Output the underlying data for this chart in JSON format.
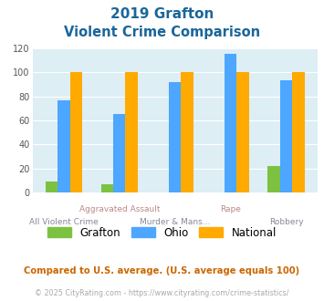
{
  "title_line1": "2019 Grafton",
  "title_line2": "Violent Crime Comparison",
  "categories": [
    "All Violent Crime",
    "Aggravated Assault",
    "Murder & Mans...",
    "Rape",
    "Robbery"
  ],
  "grafton": [
    9,
    7,
    0,
    0,
    22
  ],
  "ohio": [
    77,
    65,
    92,
    115,
    93
  ],
  "national": [
    100,
    100,
    100,
    100,
    100
  ],
  "grafton_color": "#7dc142",
  "ohio_color": "#4da6ff",
  "national_color": "#ffaa00",
  "bg_color": "#ddeef5",
  "ylim": [
    0,
    120
  ],
  "yticks": [
    0,
    20,
    40,
    60,
    80,
    100,
    120
  ],
  "title_color": "#1a6699",
  "xlabel_color_top": "#bb8888",
  "xlabel_color_bot": "#888899",
  "footnote1": "Compared to U.S. average. (U.S. average equals 100)",
  "footnote2": "© 2025 CityRating.com - https://www.cityrating.com/crime-statistics/",
  "footnote1_color": "#cc6600",
  "footnote2_color": "#aaaaaa",
  "legend_labels": [
    "Grafton",
    "Ohio",
    "National"
  ]
}
